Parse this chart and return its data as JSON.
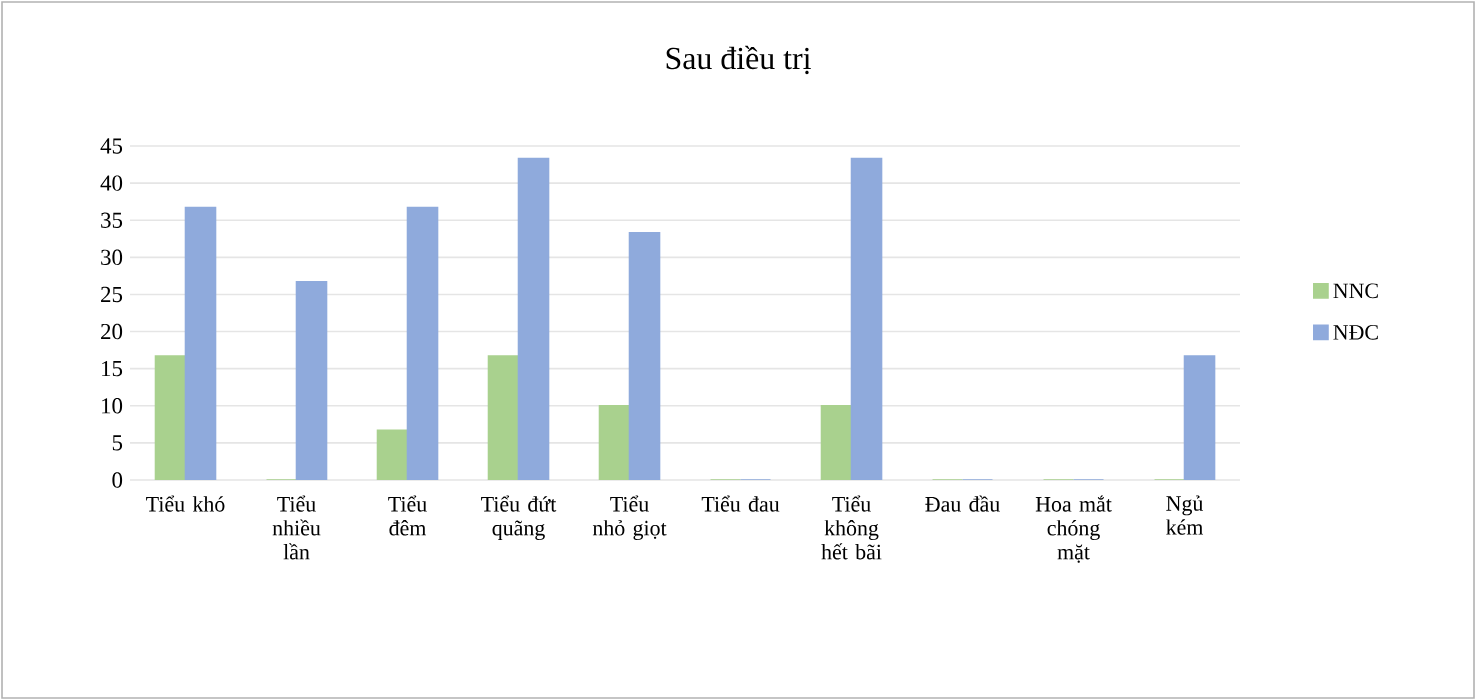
{
  "chart_data": {
    "type": "bar",
    "title": "Sau điều trị",
    "categories": [
      "Tiểu khó",
      "Tiểu nhiều lần",
      "Tiểu đêm",
      "Tiểu đứt quãng",
      "Tiểu nhỏ giọt",
      "Tiểu đau",
      "Tiểu không hết bãi",
      "Đau đầu",
      "Hoa mắt chóng mặt",
      "Ngủ kém"
    ],
    "series": [
      {
        "name": "NNC",
        "color": "#a9d18e",
        "values": [
          16.7,
          0,
          6.7,
          16.7,
          10,
          0,
          10,
          0,
          0,
          0
        ]
      },
      {
        "name": "NĐC",
        "color": "#8faadc",
        "values": [
          36.7,
          26.7,
          36.7,
          43.3,
          33.3,
          0,
          43.3,
          0,
          0,
          16.7
        ]
      }
    ],
    "ylim": [
      0,
      45
    ],
    "yticks": [
      0,
      5,
      10,
      15,
      20,
      25,
      30,
      35,
      40,
      45
    ],
    "grid": "y",
    "legend": "right"
  }
}
